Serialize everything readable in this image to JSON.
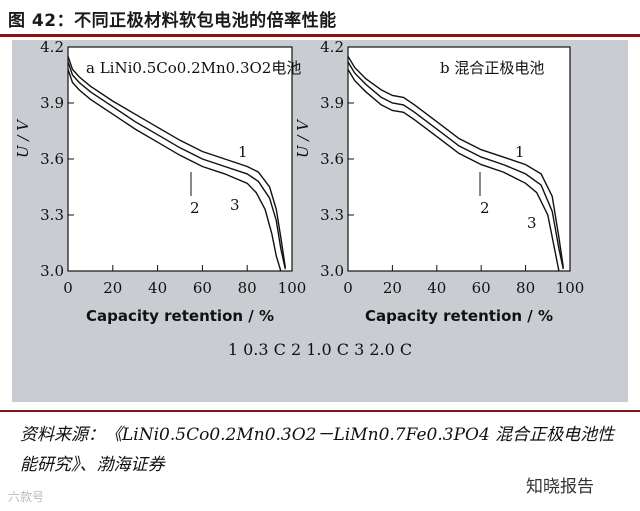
{
  "figure_title": "图 42：不同正极材料软包电池的倍率性能",
  "legend_text": "1 0.3 C   2 1.0 C   3 2.0 C",
  "source_text": "资料来源：《LiNi0.5Co0.2Mn0.3O2－LiMn0.7Fe0.3PO4 混合正极电池性能研究》、渤海证券",
  "watermark_left": "六款号",
  "watermark_right": "知晓报告",
  "colors": {
    "title_rule": "#7a1a1a",
    "panel_bg": "#c9cdd1",
    "plot_bg": "#ffffff",
    "curve": "#111111"
  },
  "chart_data": [
    {
      "type": "line",
      "panel_label": "a LiNi0.5Co0.2Mn0.3O2电池",
      "xlabel": "Capacity retention / %",
      "ylabel": "U / V",
      "xlim": [
        0,
        100
      ],
      "ylim": [
        3.0,
        4.2
      ],
      "x_ticks": [
        "0",
        "20",
        "40",
        "60",
        "80",
        "100"
      ],
      "y_ticks": [
        "3.0",
        "3.3",
        "3.6",
        "3.9",
        "4.2"
      ],
      "series": [
        {
          "name": "1",
          "x": [
            0,
            2,
            5,
            10,
            20,
            30,
            40,
            50,
            60,
            70,
            80,
            85,
            90,
            93,
            95,
            97
          ],
          "y": [
            4.15,
            4.08,
            4.04,
            3.99,
            3.91,
            3.84,
            3.77,
            3.7,
            3.64,
            3.6,
            3.56,
            3.53,
            3.45,
            3.33,
            3.18,
            3.02
          ]
        },
        {
          "name": "2",
          "x": [
            0,
            2,
            5,
            10,
            20,
            30,
            40,
            50,
            60,
            70,
            80,
            85,
            90,
            93,
            95,
            97
          ],
          "y": [
            4.12,
            4.05,
            4.01,
            3.96,
            3.88,
            3.8,
            3.73,
            3.66,
            3.6,
            3.56,
            3.52,
            3.48,
            3.39,
            3.27,
            3.12,
            3.01
          ]
        },
        {
          "name": "3",
          "x": [
            0,
            2,
            5,
            10,
            20,
            30,
            40,
            50,
            60,
            70,
            80,
            84,
            88,
            91,
            93,
            95
          ],
          "y": [
            4.08,
            4.01,
            3.97,
            3.92,
            3.84,
            3.76,
            3.69,
            3.62,
            3.56,
            3.52,
            3.47,
            3.42,
            3.33,
            3.2,
            3.08,
            3.0
          ]
        }
      ],
      "annotations": [
        "1",
        "2",
        "3"
      ]
    },
    {
      "type": "line",
      "panel_label": "b 混合正极电池",
      "xlabel": "Capacity retention / %",
      "ylabel": "U / V",
      "xlim": [
        0,
        100
      ],
      "ylim": [
        3.0,
        4.2
      ],
      "x_ticks": [
        "0",
        "20",
        "40",
        "60",
        "80",
        "100"
      ],
      "y_ticks": [
        "3.0",
        "3.3",
        "3.6",
        "3.9",
        "4.2"
      ],
      "series": [
        {
          "name": "1",
          "x": [
            0,
            3,
            8,
            15,
            20,
            25,
            30,
            40,
            50,
            60,
            70,
            80,
            87,
            92,
            95,
            97
          ],
          "y": [
            4.15,
            4.09,
            4.03,
            3.97,
            3.94,
            3.93,
            3.89,
            3.8,
            3.71,
            3.65,
            3.61,
            3.57,
            3.52,
            3.4,
            3.18,
            3.02
          ]
        },
        {
          "name": "2",
          "x": [
            0,
            3,
            8,
            15,
            20,
            25,
            30,
            40,
            50,
            60,
            70,
            80,
            87,
            92,
            95,
            97
          ],
          "y": [
            4.12,
            4.06,
            4.0,
            3.93,
            3.9,
            3.89,
            3.85,
            3.76,
            3.67,
            3.61,
            3.57,
            3.52,
            3.46,
            3.32,
            3.12,
            3.01
          ]
        },
        {
          "name": "3",
          "x": [
            0,
            3,
            8,
            15,
            20,
            25,
            30,
            40,
            50,
            60,
            70,
            80,
            85,
            90,
            93,
            95
          ],
          "y": [
            4.08,
            4.02,
            3.96,
            3.89,
            3.86,
            3.85,
            3.81,
            3.72,
            3.63,
            3.57,
            3.53,
            3.47,
            3.42,
            3.3,
            3.12,
            3.0
          ]
        }
      ],
      "annotations": [
        "1",
        "2",
        "3"
      ]
    }
  ]
}
